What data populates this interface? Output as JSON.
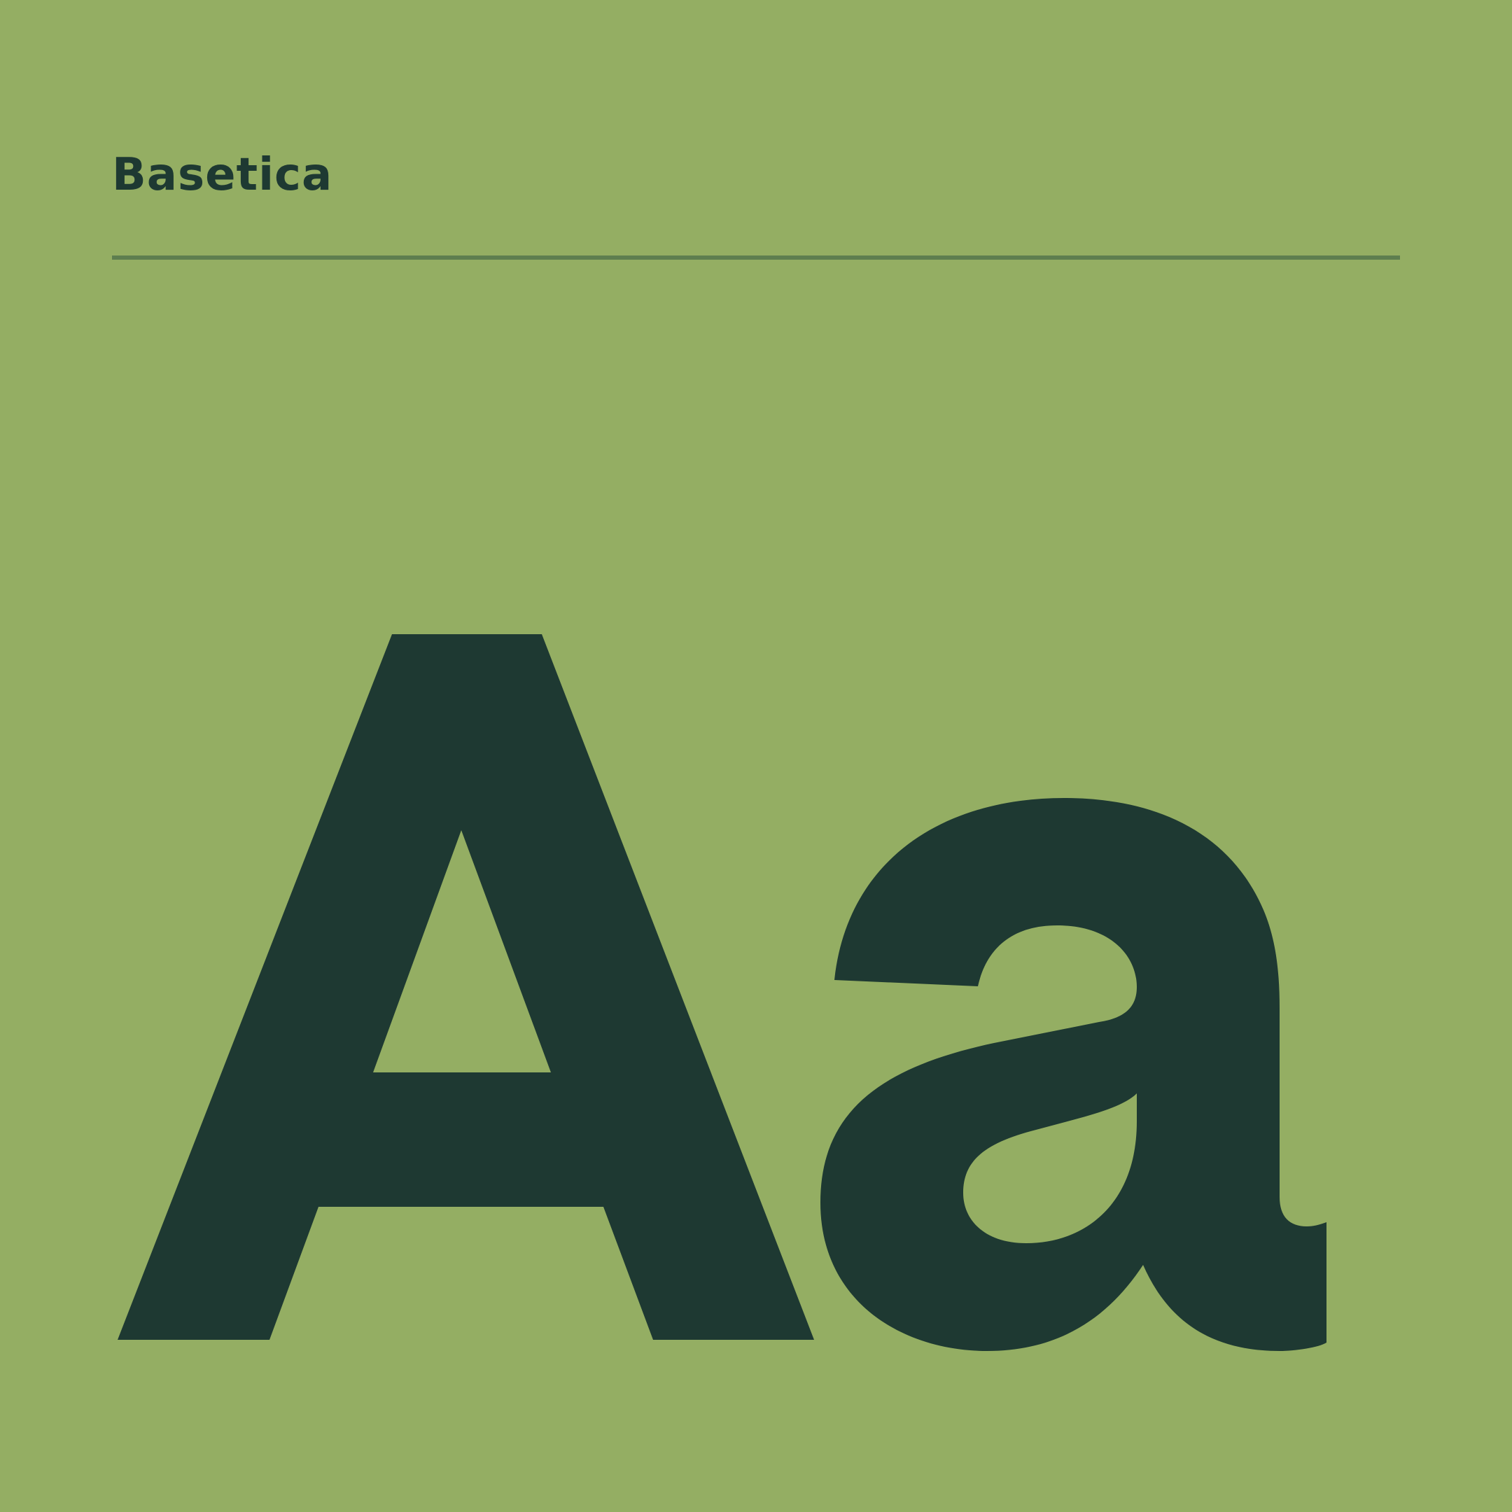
{
  "brand": {
    "name": "Basetica"
  },
  "specimen": {
    "glyphs": "Aa"
  },
  "colors": {
    "background": "#94ae63",
    "ink": "#1e3932",
    "divider": "#5e7e4f"
  }
}
